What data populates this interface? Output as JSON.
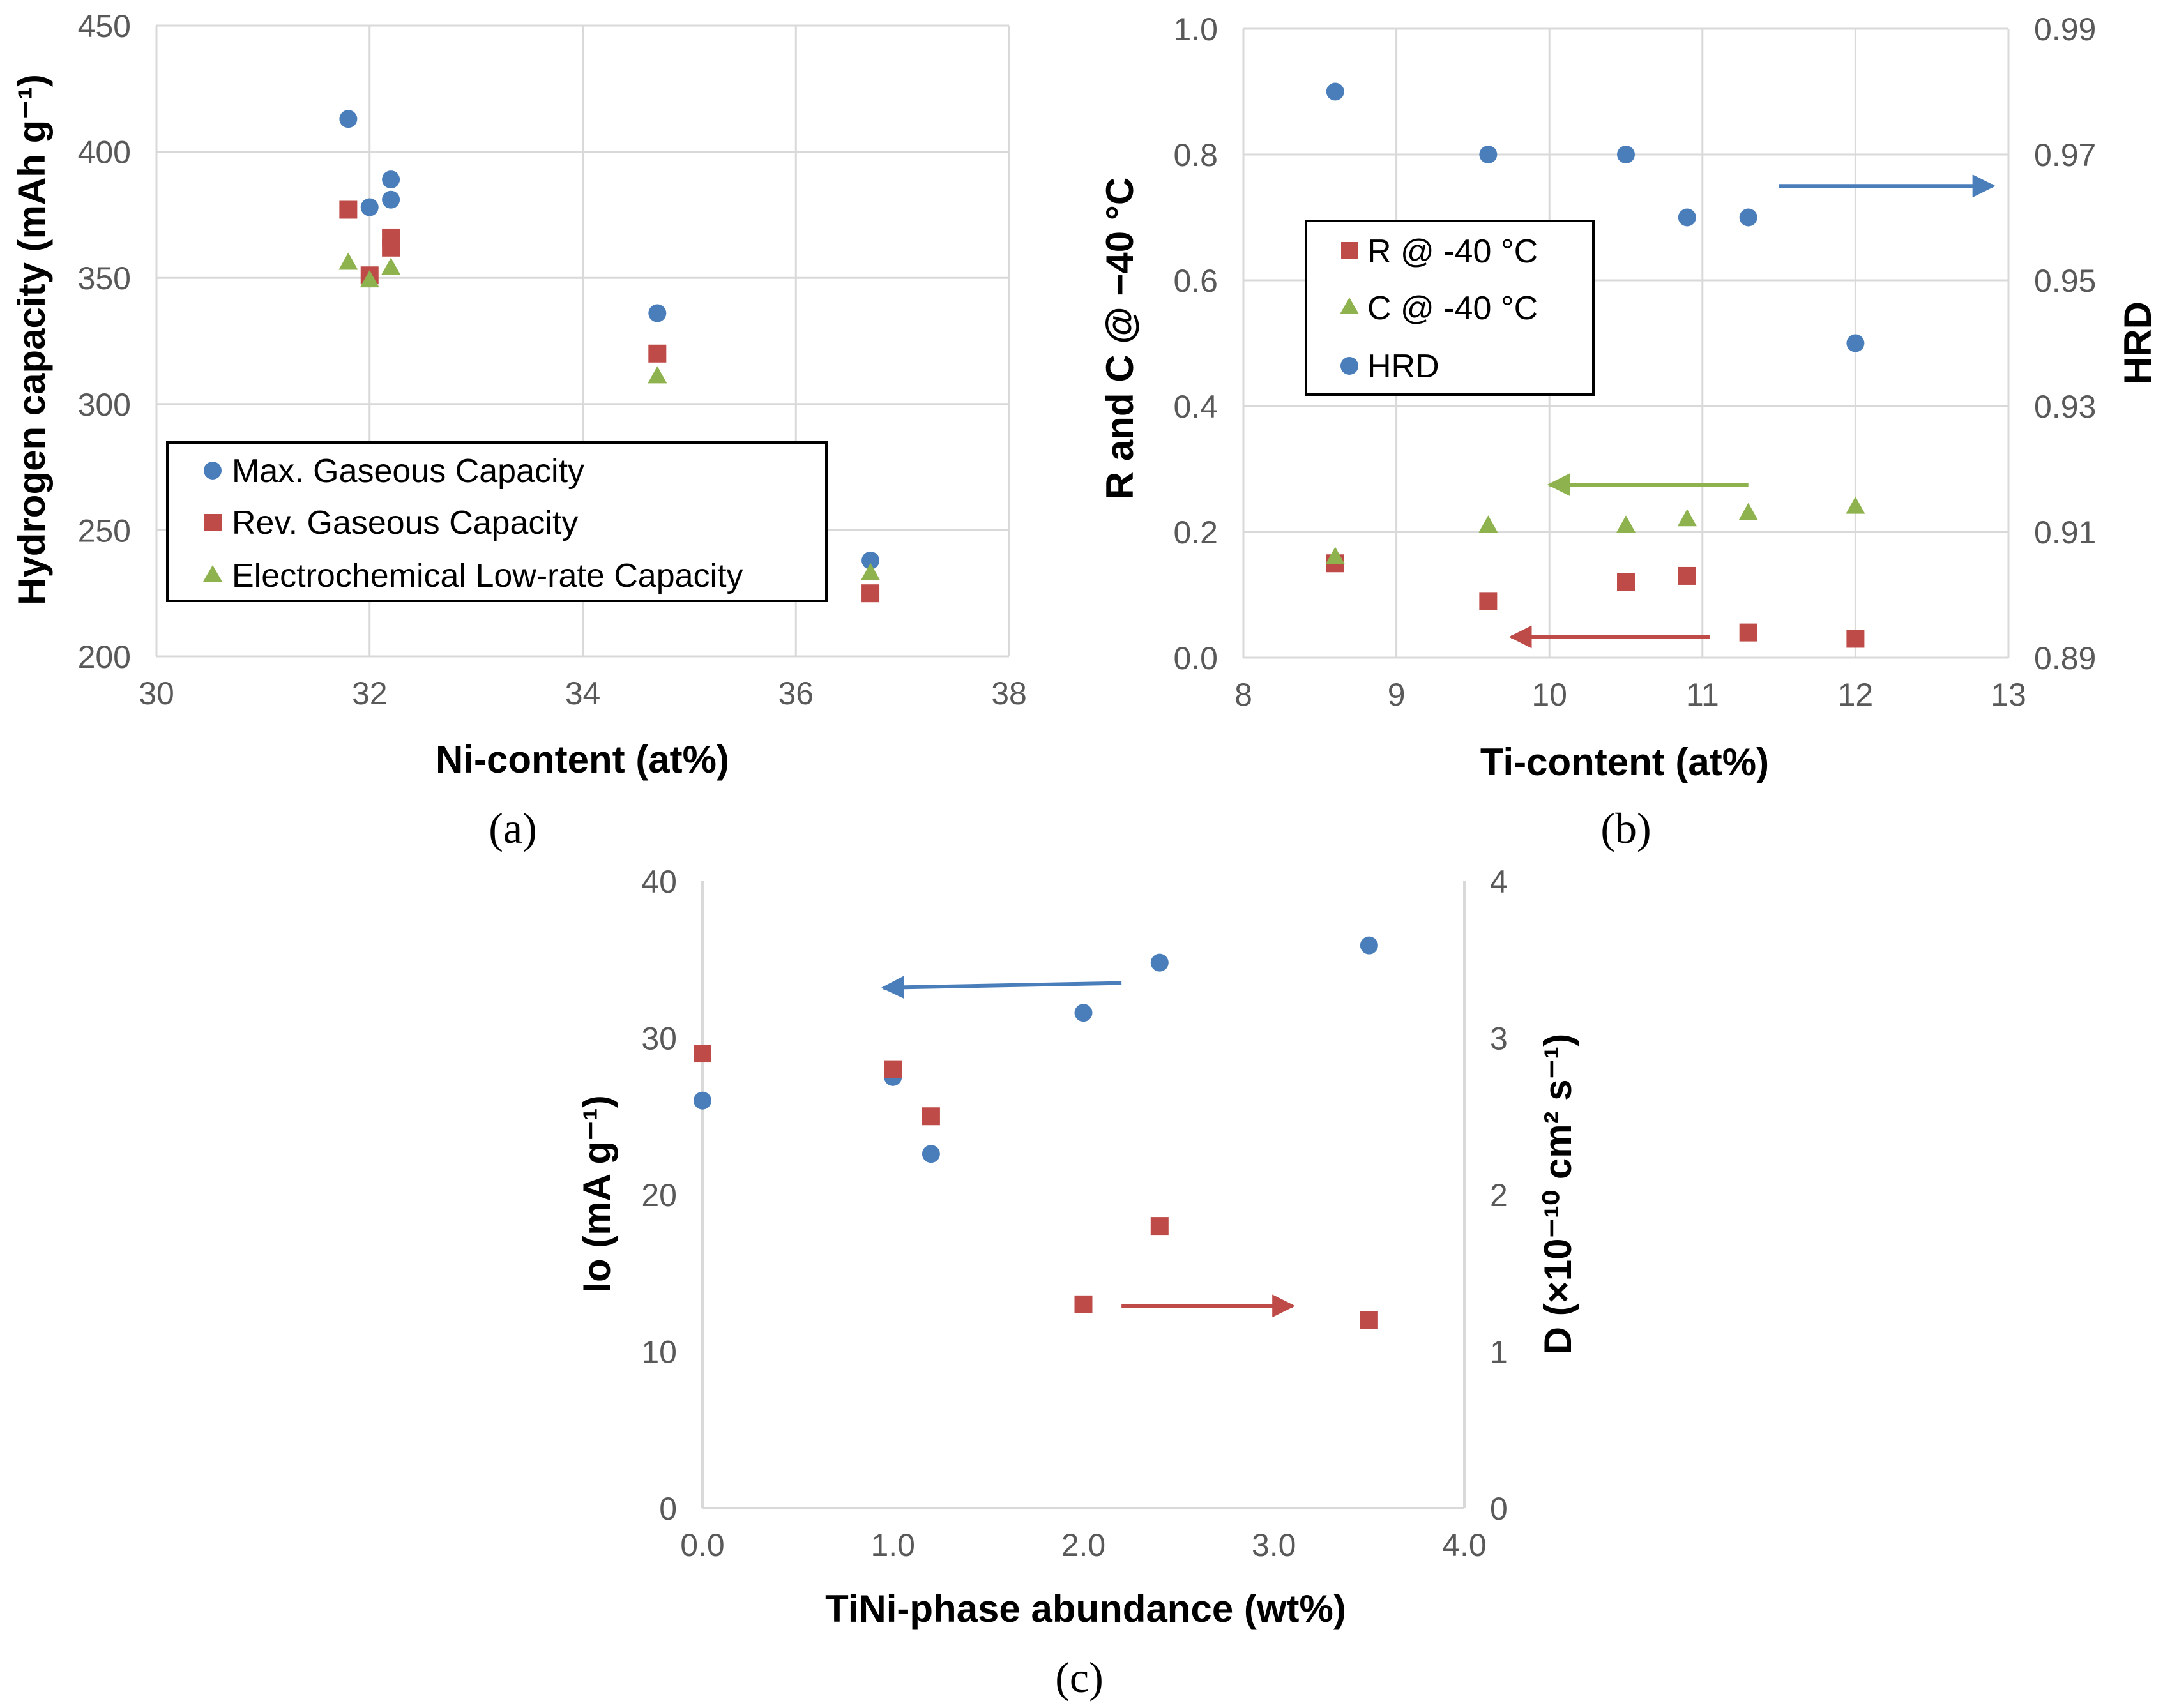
{
  "colors": {
    "blue": "#4a7ebb",
    "red": "#be4b48",
    "green": "#8db24e",
    "grid": "#d9d9d9",
    "axis_text": "#595959"
  },
  "chart_data": [
    {
      "panel": "(a)",
      "type": "scatter",
      "xlabel": "Ni-content (at%)",
      "ylabel": "Hydrogen capacity (mAh g⁻¹)",
      "xlim": [
        30,
        38
      ],
      "ylim": [
        200,
        450
      ],
      "xticks": [
        "30",
        "32",
        "34",
        "36",
        "38"
      ],
      "yticks": [
        "200",
        "250",
        "300",
        "350",
        "400",
        "450"
      ],
      "grid": true,
      "legend_position": "lower-left",
      "series": [
        {
          "name": "Max. Gaseous Capacity",
          "marker": "circle",
          "color": "#4a7ebb",
          "points": [
            [
              31.8,
              413
            ],
            [
              32.0,
              378
            ],
            [
              32.2,
              389
            ],
            [
              32.2,
              381
            ],
            [
              34.7,
              336
            ],
            [
              36.7,
              238
            ]
          ]
        },
        {
          "name": "Rev. Gaseous Capacity",
          "marker": "square",
          "color": "#be4b48",
          "points": [
            [
              31.8,
              377
            ],
            [
              32.0,
              351
            ],
            [
              32.2,
              366
            ],
            [
              32.2,
              362
            ],
            [
              34.7,
              320
            ],
            [
              36.7,
              225
            ]
          ]
        },
        {
          "name": "Electrochemical Low-rate Capacity",
          "marker": "triangle",
          "color": "#8db24e",
          "points": [
            [
              31.8,
              356
            ],
            [
              32.0,
              349
            ],
            [
              32.2,
              354
            ],
            [
              34.7,
              311
            ],
            [
              36.7,
              233
            ]
          ]
        }
      ]
    },
    {
      "panel": "(b)",
      "type": "scatter",
      "xlabel": "Ti-content (at%)",
      "ylabel": "R and C @ −40 °C",
      "y2label": "HRD",
      "xlim": [
        8,
        13
      ],
      "ylim": [
        0,
        1.0
      ],
      "y2lim": [
        0.89,
        0.99
      ],
      "xticks": [
        "8",
        "9",
        "10",
        "11",
        "12",
        "13"
      ],
      "yticks": [
        "0.0",
        "0.2",
        "0.4",
        "0.6",
        "0.8",
        "1.0"
      ],
      "y2ticks": [
        "0.89",
        "0.91",
        "0.93",
        "0.95",
        "0.97",
        "0.99"
      ],
      "grid": true,
      "legend_position": "upper-left",
      "series": [
        {
          "name": "R @ -40 °C",
          "marker": "square",
          "color": "#be4b48",
          "axis": "left",
          "points": [
            [
              8.6,
              0.15
            ],
            [
              9.6,
              0.09
            ],
            [
              10.5,
              0.12
            ],
            [
              10.9,
              0.13
            ],
            [
              11.3,
              0.04
            ],
            [
              12.0,
              0.03
            ]
          ]
        },
        {
          "name": "C @ -40 °C",
          "marker": "triangle",
          "color": "#8db24e",
          "axis": "left",
          "points": [
            [
              8.6,
              0.16
            ],
            [
              9.6,
              0.21
            ],
            [
              10.5,
              0.21
            ],
            [
              10.9,
              0.22
            ],
            [
              11.3,
              0.23
            ],
            [
              12.0,
              0.24
            ]
          ]
        },
        {
          "name": "HRD",
          "marker": "circle",
          "color": "#4a7ebb",
          "axis": "right",
          "points": [
            [
              8.6,
              0.98
            ],
            [
              9.6,
              0.97
            ],
            [
              10.5,
              0.97
            ],
            [
              10.9,
              0.96
            ],
            [
              11.3,
              0.96
            ],
            [
              12.0,
              0.94
            ]
          ]
        }
      ],
      "arrows": [
        {
          "color": "#4a7ebb",
          "from": [
            11.5,
            0.75
          ],
          "to": [
            12.9,
            0.75
          ]
        },
        {
          "color": "#8db24e",
          "from": [
            11.3,
            0.275
          ],
          "to": [
            10.0,
            0.275
          ]
        },
        {
          "color": "#be4b48",
          "from": [
            11.05,
            0.033
          ],
          "to": [
            9.75,
            0.033
          ]
        }
      ]
    },
    {
      "panel": "(c)",
      "type": "scatter",
      "xlabel": "TiNi-phase abundance (wt%)",
      "ylabel": "Io (mA g⁻¹)",
      "y2label": "D (×10⁻¹⁰ cm² s⁻¹)",
      "xlim": [
        0,
        4
      ],
      "ylim": [
        0,
        40
      ],
      "y2lim": [
        0,
        4
      ],
      "xticks": [
        "0.0",
        "1.0",
        "2.0",
        "3.0",
        "4.0"
      ],
      "yticks": [
        "0",
        "10",
        "20",
        "30",
        "40"
      ],
      "y2ticks": [
        "0",
        "1",
        "2",
        "3",
        "4"
      ],
      "grid": false,
      "series": [
        {
          "marker": "circle",
          "color": "#4a7ebb",
          "axis": "left",
          "points": [
            [
              0.0,
              26.0
            ],
            [
              1.0,
              27.5
            ],
            [
              1.2,
              22.6
            ],
            [
              2.0,
              31.6
            ],
            [
              2.4,
              34.8
            ],
            [
              3.5,
              35.9
            ]
          ]
        },
        {
          "marker": "square",
          "color": "#be4b48",
          "axis": "right",
          "points": [
            [
              0.0,
              2.9
            ],
            [
              1.0,
              2.8
            ],
            [
              1.2,
              2.5
            ],
            [
              2.0,
              1.3
            ],
            [
              2.4,
              1.8
            ],
            [
              3.5,
              1.2
            ]
          ]
        }
      ],
      "arrows": [
        {
          "color": "#4a7ebb",
          "from": [
            2.2,
            33.5
          ],
          "to": [
            0.95,
            33.2
          ]
        },
        {
          "color": "#be4b48",
          "from": [
            2.2,
            12.9
          ],
          "to": [
            3.1,
            12.9
          ]
        }
      ]
    }
  ]
}
